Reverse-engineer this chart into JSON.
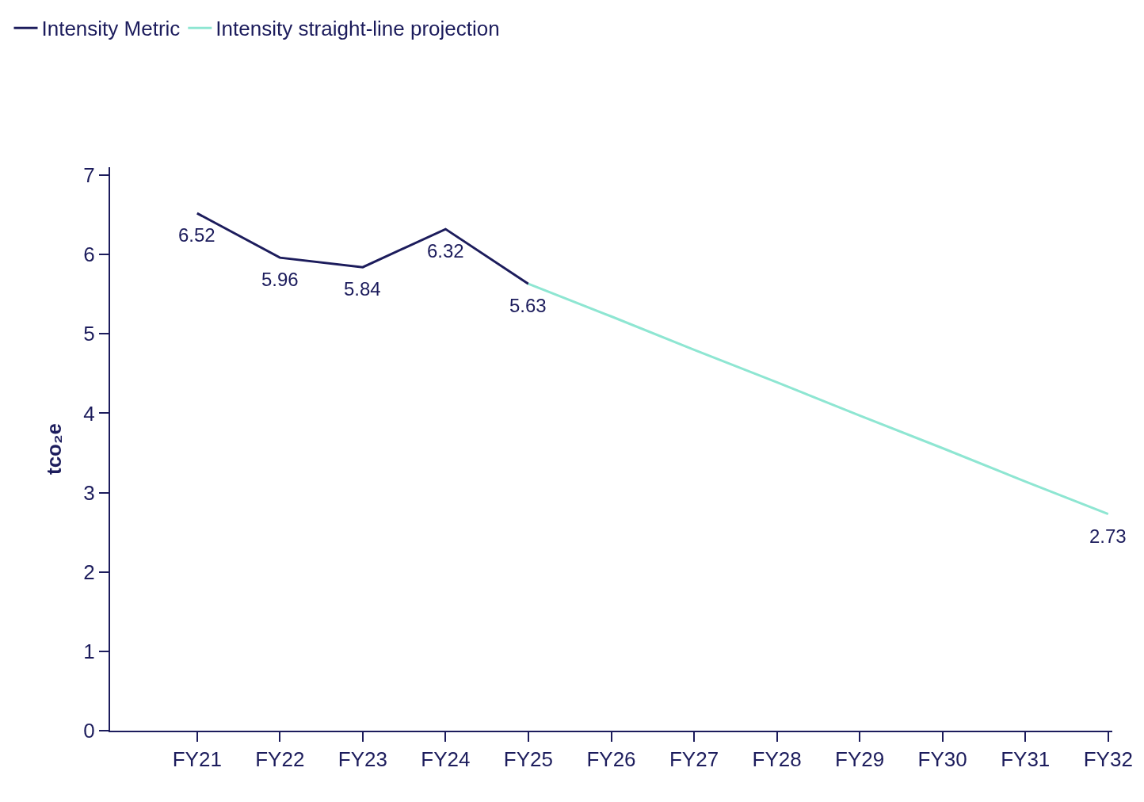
{
  "chart_data": {
    "type": "line",
    "ylabel": "tco₂e",
    "categories": [
      "FY21",
      "FY22",
      "FY23",
      "FY24",
      "FY25",
      "FY26",
      "FY27",
      "FY28",
      "FY29",
      "FY30",
      "FY31",
      "FY32"
    ],
    "series": [
      {
        "name": "Intensity Metric",
        "color": "#1c1c5c",
        "values": [
          6.52,
          5.96,
          5.84,
          6.32,
          5.63,
          null,
          null,
          null,
          null,
          null,
          null,
          null
        ],
        "value_labels": [
          "6.52",
          "5.96",
          "5.84",
          "6.32",
          "5.63",
          null,
          null,
          null,
          null,
          null,
          null,
          null
        ]
      },
      {
        "name": "Intensity straight-line projection",
        "color": "#8ee6d2",
        "values": [
          null,
          null,
          null,
          null,
          5.63,
          5.22,
          4.8,
          4.39,
          3.97,
          3.56,
          3.14,
          2.73
        ],
        "value_labels": [
          null,
          null,
          null,
          null,
          null,
          null,
          null,
          null,
          null,
          null,
          null,
          "2.73"
        ]
      }
    ],
    "ylim": [
      0,
      7.1
    ],
    "yticks": [
      0,
      1,
      2,
      3,
      4,
      5,
      6,
      7
    ],
    "legend": "top left",
    "marker": "none",
    "line_style": "solid"
  }
}
